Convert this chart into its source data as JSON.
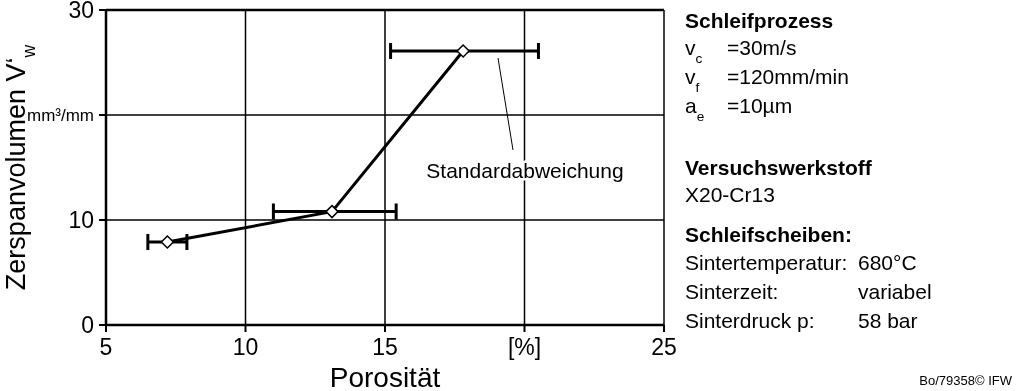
{
  "chart_data": {
    "type": "line",
    "xlabel": "Porosität",
    "ylabel": "Zerspanvolumen V‘$_{w}$",
    "xlim": [
      5,
      25
    ],
    "xticks": [
      5,
      10,
      15,
      {
        "value": 20,
        "label": "[%]"
      },
      25
    ],
    "ylim": [
      0,
      30
    ],
    "yticks": [
      0,
      10,
      {
        "value": 20,
        "label": "mm³/mm"
      },
      30
    ],
    "grid": true,
    "marker": "diamond",
    "line_style": "solid",
    "series": [
      {
        "color": "#000000",
        "x": [
          7.2,
          13.1,
          17.8
        ],
        "values": [
          7.9,
          10.8,
          26.1
        ],
        "xerrors": [
          [
            6.5,
            7.9
          ],
          [
            11.0,
            15.4
          ],
          [
            15.2,
            20.5
          ]
        ]
      }
    ],
    "annotations": [
      "Standardabweichung",
      "Schleifprozess",
      "v$_{c}$",
      "=30m/s",
      "v$_{f}$",
      "=120mm/min",
      "a$_{e}$",
      "=10µm",
      "Versuchswerkstoff",
      "X20-Cr13",
      "Schleifscheiben:",
      "Sintertemperatur:",
      "680°C",
      "Sinterzeit:",
      "variabel",
      "Sinterdruck p:",
      "58 bar",
      "Bo/79358© IFW"
    ]
  }
}
